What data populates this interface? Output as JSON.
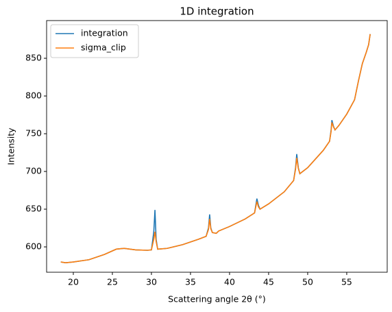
{
  "chart_data": {
    "type": "line",
    "title": "1D integration",
    "x_label": "Scattering angle 2θ (°)",
    "y_label": "Intensity",
    "x": [
      18.4,
      19,
      20,
      22,
      24,
      25.5,
      26.5,
      28,
      29.5,
      30.0,
      30.3,
      30.45,
      30.6,
      30.8,
      32,
      34,
      36,
      37,
      37.3,
      37.45,
      37.6,
      37.8,
      38.3,
      38.6,
      40,
      42,
      43.2,
      43.5,
      43.7,
      43.9,
      45,
      47,
      48.2,
      48.45,
      48.6,
      48.8,
      49,
      50,
      52,
      52.8,
      53.0,
      53.1,
      53.3,
      53.5,
      54,
      55,
      56,
      56.5,
      57,
      57.5,
      57.8,
      58
    ],
    "series": [
      {
        "name": "integration",
        "color": "#1f77b4",
        "values": [
          580,
          579,
          580,
          583,
          590,
          597,
          598,
          596,
          595.5,
          596,
          620,
          649,
          610,
          597,
          598,
          603,
          610,
          614,
          625,
          643,
          625,
          619,
          618,
          621,
          627,
          637,
          645,
          664,
          655,
          650,
          657,
          673,
          688,
          705,
          723,
          705,
          697,
          705,
          728,
          740,
          755,
          768,
          760,
          755,
          761,
          776,
          795,
          820,
          843,
          858,
          868,
          882
        ]
      },
      {
        "name": "sigma_clip",
        "color": "#ff7f0e",
        "values": [
          580,
          579,
          580,
          583,
          590,
          597,
          598,
          596,
          595.5,
          596,
          610,
          620,
          607,
          597,
          598,
          603,
          610,
          614,
          623,
          637,
          624,
          619,
          618,
          621,
          627,
          637,
          645,
          660,
          653,
          650,
          657,
          673,
          688,
          703,
          718,
          704,
          697,
          705,
          728,
          740,
          753,
          765,
          759,
          755,
          761,
          776,
          795,
          820,
          843,
          858,
          868,
          882
        ]
      }
    ],
    "xlim": [
      16.58,
      60.18
    ],
    "ylim": [
      566.4,
      900
    ],
    "xticks": [
      20,
      25,
      30,
      35,
      40,
      45,
      50,
      55
    ],
    "yticks": [
      600,
      650,
      700,
      750,
      800,
      850
    ],
    "legend": "upper left",
    "grid": false
  }
}
